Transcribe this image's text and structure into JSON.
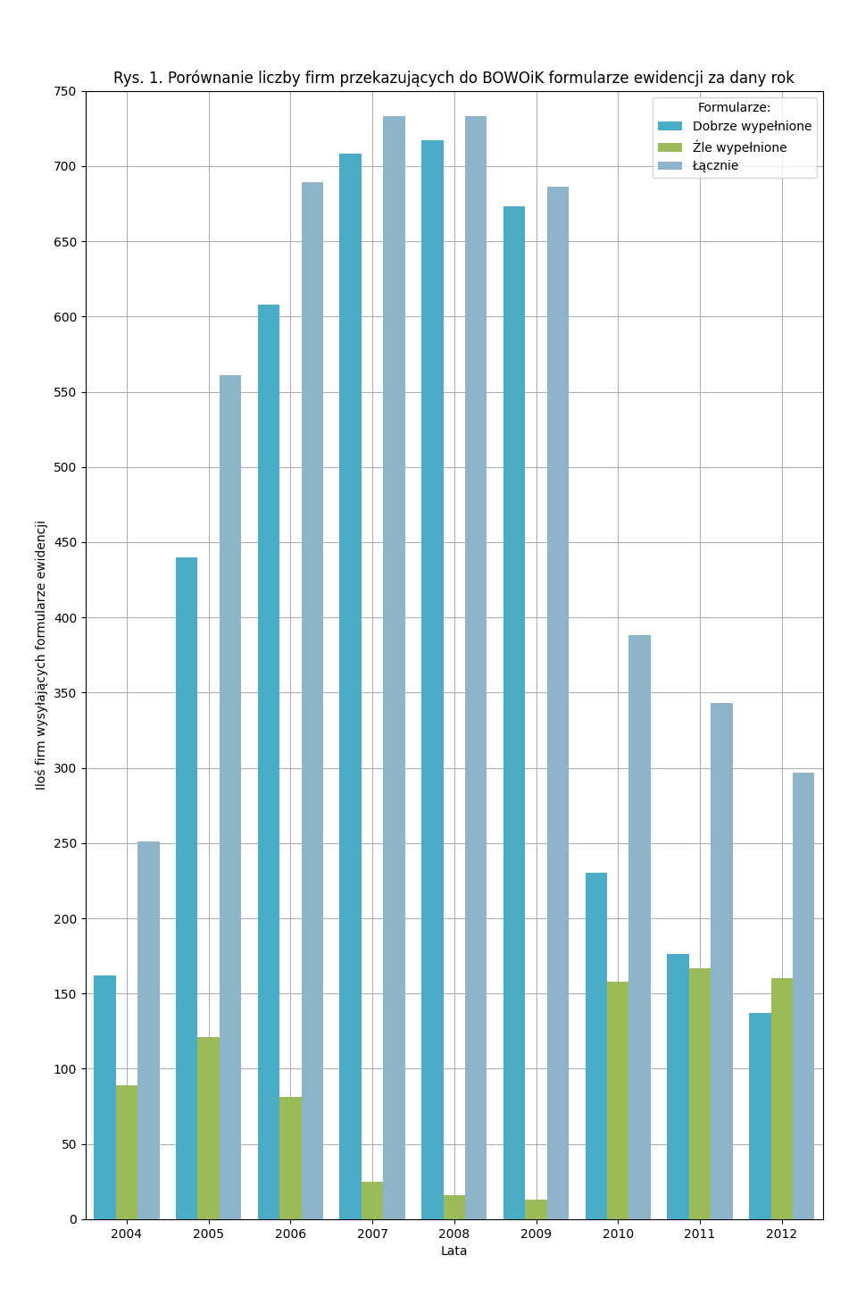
{
  "chart_data": {
    "type": "bar",
    "title": "Rys. 1. Porównanie liczby firm przekazujących do BOWOiK formularze ewidencji za dany rok",
    "x_label": "Lata",
    "y_label": "Iloś firm wysyłających formularze ewidencji",
    "categories": [
      "2004",
      "2005",
      "2006",
      "2007",
      "2008",
      "2009",
      "2010",
      "2011",
      "2012"
    ],
    "series": [
      {
        "name": "Dobrze wypełnione",
        "color": "#4BACC6",
        "values": [
          162,
          440,
          608,
          708,
          717,
          673,
          230,
          176,
          137
        ]
      },
      {
        "name": "Źle wypełnione",
        "color": "#9BBB59",
        "values": [
          89,
          121,
          81,
          25,
          16,
          13,
          158,
          167,
          160
        ]
      },
      {
        "name": "Łącznie",
        "color": "#8EB4CB",
        "values": [
          251,
          561,
          689,
          733,
          733,
          686,
          388,
          343,
          297
        ]
      }
    ],
    "legend_title": "Formularze:",
    "legend": "upper right",
    "ylim": [
      0,
      750
    ],
    "yticks": [
      0,
      50,
      100,
      150,
      200,
      250,
      300,
      350,
      400,
      450,
      500,
      550,
      600,
      650,
      700,
      750
    ],
    "grid": true
  }
}
